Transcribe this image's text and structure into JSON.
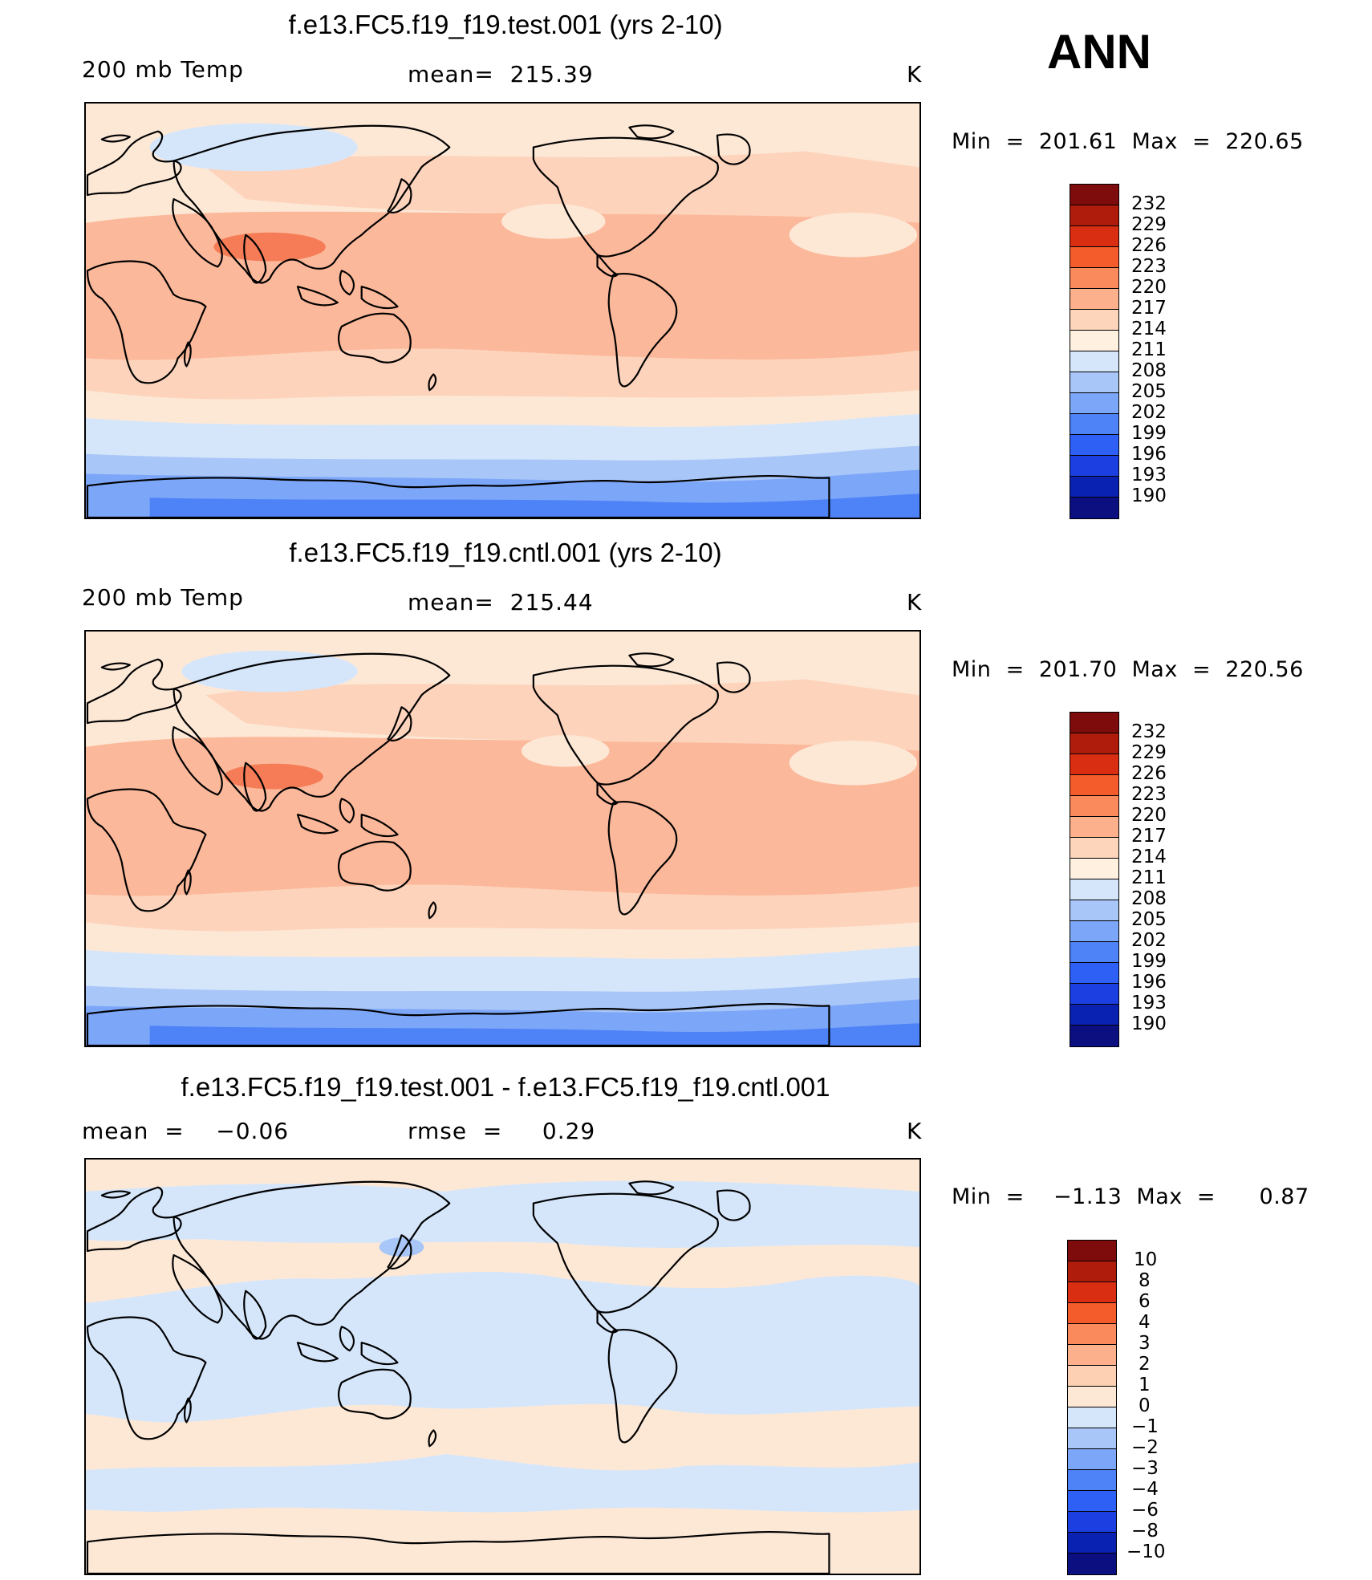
{
  "season": "ANN",
  "colors": {
    "temp_scale": [
      "#0b0f80",
      "#0a22b2",
      "#1b3fe0",
      "#2f60f5",
      "#4e82f7",
      "#7ca6f8",
      "#a9c6f8",
      "#d5e6fb",
      "#fff0e0",
      "#fdd5bb",
      "#fcb08c",
      "#fa8a5c",
      "#f45c2c",
      "#d92e12",
      "#b01c0c",
      "#7f0c0c"
    ],
    "diff_scale": [
      "#0b0f80",
      "#0a22b2",
      "#1b3fe0",
      "#2f60f5",
      "#4e82f7",
      "#7ca6f8",
      "#a9c6f8",
      "#d5e6fb",
      "#fde8d6",
      "#fdd0b4",
      "#fcb08c",
      "#fa8a5c",
      "#f45c2c",
      "#d92e12",
      "#b01c0c",
      "#7f0c0c"
    ]
  },
  "panels": [
    {
      "title": "f.e13.FC5.f19_f19.test.001 (yrs 2-10)",
      "left_label": "200 mb Temp",
      "center_label": "mean=  215.39",
      "units": "K",
      "minmax": "Min  =  201.61  Max  =  220.65",
      "colorbar": [
        "232",
        "229",
        "226",
        "223",
        "220",
        "217",
        "214",
        "211",
        "208",
        "205",
        "202",
        "199",
        "196",
        "193",
        "190"
      ]
    },
    {
      "title": "f.e13.FC5.f19_f19.cntl.001 (yrs 2-10)",
      "left_label": "200 mb Temp",
      "center_label": "mean=  215.44",
      "units": "K",
      "minmax": "Min  =  201.70  Max  =  220.56",
      "colorbar": [
        "232",
        "229",
        "226",
        "223",
        "220",
        "217",
        "214",
        "211",
        "208",
        "205",
        "202",
        "199",
        "196",
        "193",
        "190"
      ]
    },
    {
      "title": "f.e13.FC5.f19_f19.test.001 - f.e13.FC5.f19_f19.cntl.001",
      "left_label": "mean  =    −0.06",
      "center_label": "rmse  =     0.29",
      "units": "K",
      "minmax": "Min  =    −1.13  Max  =      0.87",
      "colorbar": [
        "10",
        "8",
        "6",
        "4",
        "3",
        "2",
        "1",
        "0",
        "−1",
        "−2",
        "−3",
        "−4",
        "−6",
        "−8",
        "−10"
      ]
    }
  ]
}
